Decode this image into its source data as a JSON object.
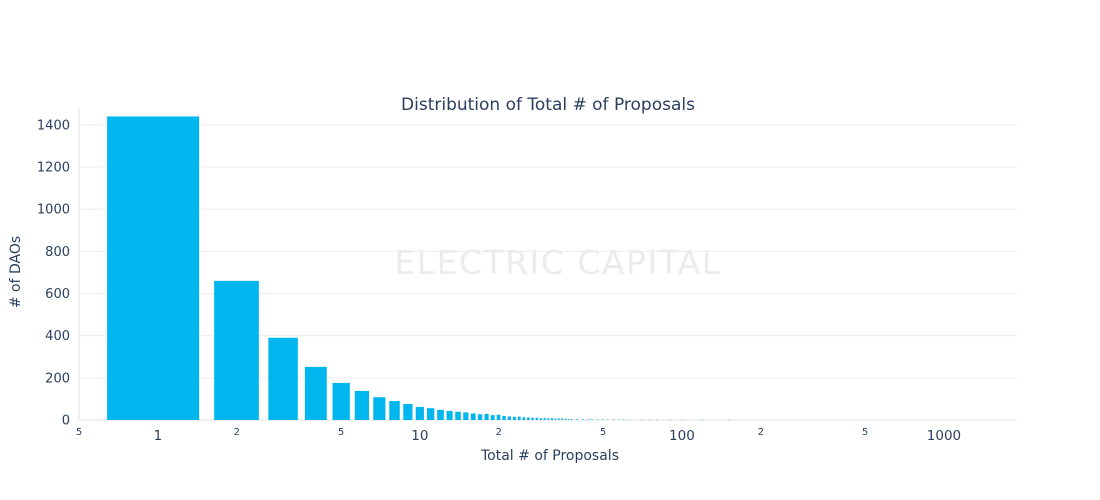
{
  "chart_data": {
    "type": "bar",
    "subtype": "histogram-log-x",
    "title": "Distribution of Total # of Proposals",
    "xlabel": "Total # of Proposals",
    "ylabel": "# of DAOs",
    "watermark": "ELECTRIC CAPITAL",
    "bar_color": "#00b6ef",
    "grid_color": "#ededed",
    "axis_line_color": "#e2e2e2",
    "text_color": "#2a3f5f",
    "grid": true,
    "legend": "none",
    "x_scale": "log",
    "xlim": [
      0.5,
      1900
    ],
    "ylim": [
      0,
      1480
    ],
    "y_ticks": [
      0,
      200,
      400,
      600,
      800,
      1000,
      1200,
      1400
    ],
    "x_major_ticks": [
      {
        "v": 1,
        "label": "1"
      },
      {
        "v": 10,
        "label": "10"
      },
      {
        "v": 100,
        "label": "100"
      },
      {
        "v": 1000,
        "label": "1000"
      }
    ],
    "x_minor_ticks": [
      {
        "v": 0.5,
        "label": "5"
      },
      {
        "v": 2,
        "label": "2"
      },
      {
        "v": 5,
        "label": "5"
      },
      {
        "v": 20,
        "label": "2"
      },
      {
        "v": 50,
        "label": "5"
      },
      {
        "v": 200,
        "label": "2"
      },
      {
        "v": 500,
        "label": "5"
      }
    ],
    "x": [
      1,
      2,
      3,
      4,
      5,
      6,
      7,
      8,
      9,
      10,
      11,
      12,
      13,
      14,
      15,
      16,
      17,
      18,
      19,
      20,
      21,
      22,
      23,
      24,
      25,
      26,
      27,
      28,
      29,
      30,
      31,
      32,
      33,
      34,
      35,
      36,
      37,
      38,
      40,
      42,
      44,
      45,
      46,
      48,
      50,
      52,
      55,
      58,
      60,
      63,
      70,
      75,
      80,
      90,
      100,
      120,
      150
    ],
    "counts": [
      1440,
      660,
      390,
      252,
      176,
      138,
      108,
      90,
      76,
      62,
      56,
      48,
      43,
      39,
      36,
      31,
      27,
      29,
      23,
      25,
      19,
      17,
      15,
      16,
      13,
      12,
      11,
      11,
      9,
      10,
      8,
      9,
      7,
      8,
      8,
      6,
      5,
      6,
      6,
      5,
      4,
      5,
      3,
      4,
      5,
      3,
      4,
      2,
      3,
      2,
      2,
      1,
      2,
      1,
      1,
      1,
      1
    ]
  }
}
